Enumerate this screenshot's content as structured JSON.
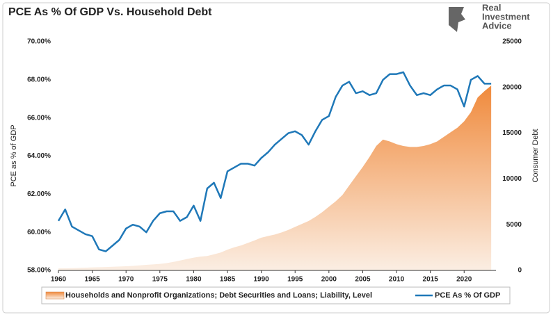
{
  "chart_data": {
    "type": "combo",
    "title": "PCE As % Of GDP Vs. Household Debt",
    "logo": [
      "Real",
      "Investment",
      "Advice"
    ],
    "ylabel": "PCE as % of GDP",
    "y2label": "Consumer Debt",
    "x": [
      1960,
      1961,
      1962,
      1963,
      1964,
      1965,
      1966,
      1967,
      1968,
      1969,
      1970,
      1971,
      1972,
      1973,
      1974,
      1975,
      1976,
      1977,
      1978,
      1979,
      1980,
      1981,
      1982,
      1983,
      1984,
      1985,
      1986,
      1987,
      1988,
      1989,
      1990,
      1991,
      1992,
      1993,
      1994,
      1995,
      1996,
      1997,
      1998,
      1999,
      2000,
      2001,
      2002,
      2003,
      2004,
      2005,
      2006,
      2007,
      2008,
      2009,
      2010,
      2011,
      2012,
      2013,
      2014,
      2015,
      2016,
      2017,
      2018,
      2019,
      2020,
      2021,
      2022,
      2023,
      2024
    ],
    "xlim": [
      1960,
      2024.5
    ],
    "xticks": [
      1960,
      1965,
      1970,
      1975,
      1980,
      1985,
      1990,
      1995,
      2000,
      2005,
      2010,
      2015,
      2020
    ],
    "ylim": [
      58,
      70
    ],
    "yticks": [
      {
        "value": 58,
        "label": "58.00%"
      },
      {
        "value": 60,
        "label": "60.00%"
      },
      {
        "value": 62,
        "label": "62.00%"
      },
      {
        "value": 64,
        "label": "64.00%"
      },
      {
        "value": 66,
        "label": "66.00%"
      },
      {
        "value": 68,
        "label": "68.00%"
      },
      {
        "value": 70,
        "label": "70.00%"
      }
    ],
    "y2lim": [
      0,
      25000
    ],
    "y2ticks": [
      0,
      5000,
      10000,
      15000,
      20000,
      25000
    ],
    "series": [
      {
        "name": "Households and Nonprofit Organizations; Debt Securities and Loans; Liability, Level",
        "type": "area",
        "axis": "y2",
        "color": "#f08a3c",
        "values": [
          215,
          230,
          250,
          275,
          300,
          330,
          350,
          370,
          400,
          430,
          455,
          490,
          550,
          610,
          660,
          710,
          800,
          930,
          1080,
          1240,
          1400,
          1510,
          1580,
          1760,
          1960,
          2270,
          2530,
          2730,
          3000,
          3280,
          3580,
          3760,
          3920,
          4150,
          4430,
          4760,
          5080,
          5400,
          5850,
          6360,
          6960,
          7550,
          8240,
          9280,
          10300,
          11300,
          12400,
          13600,
          14300,
          14100,
          13800,
          13600,
          13500,
          13500,
          13600,
          13800,
          14100,
          14600,
          15100,
          15600,
          16300,
          17300,
          18900,
          19600,
          20200
        ]
      },
      {
        "name": "PCE As % Of GDP",
        "type": "line",
        "color": "#1f78b8",
        "values": [
          60.6,
          61.2,
          60.3,
          60.1,
          59.9,
          59.8,
          59.1,
          59.0,
          59.3,
          59.6,
          60.2,
          60.4,
          60.3,
          60.0,
          60.6,
          61.0,
          61.1,
          61.1,
          60.6,
          60.8,
          61.4,
          60.6,
          62.3,
          62.6,
          61.8,
          63.2,
          63.4,
          63.6,
          63.6,
          63.5,
          63.9,
          64.2,
          64.6,
          64.9,
          65.2,
          65.3,
          65.1,
          64.6,
          65.3,
          65.9,
          66.1,
          67.1,
          67.7,
          67.9,
          67.3,
          67.4,
          67.2,
          67.3,
          68.0,
          68.3,
          68.3,
          68.4,
          67.7,
          67.2,
          67.3,
          67.2,
          67.5,
          67.7,
          67.7,
          67.5,
          66.6,
          68.0,
          68.2,
          67.8,
          67.8
        ]
      }
    ]
  }
}
